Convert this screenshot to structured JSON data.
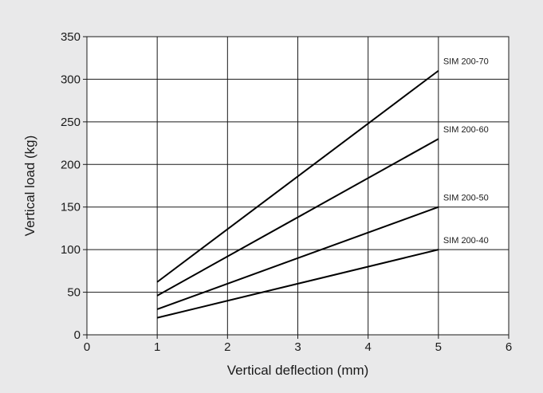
{
  "colors": {
    "background": "#e9e9ea",
    "plot_background": "#ffffff",
    "grid": "#1a1a1a",
    "series_line": "#000000",
    "text": "#1a1a1a"
  },
  "chart_data": {
    "type": "line",
    "title": "",
    "xlabel": "Vertical deflection (mm)",
    "ylabel": "Vertical load (kg)",
    "xlim": [
      0,
      6
    ],
    "ylim": [
      0,
      350
    ],
    "x_ticks": [
      "0",
      "1",
      "2",
      "3",
      "4",
      "5",
      "6"
    ],
    "y_ticks": [
      "0",
      "50",
      "100",
      "150",
      "200",
      "250",
      "300",
      "350"
    ],
    "grid": true,
    "legend": "none (series labelled at line ends)",
    "series": [
      {
        "name": "SIM 200-70",
        "x": [
          1,
          5
        ],
        "y": [
          62,
          310
        ]
      },
      {
        "name": "SIM 200-60",
        "x": [
          1,
          5
        ],
        "y": [
          46,
          230
        ]
      },
      {
        "name": "SIM 200-50",
        "x": [
          1,
          5
        ],
        "y": [
          30,
          150
        ]
      },
      {
        "name": "SIM 200-40",
        "x": [
          1,
          5
        ],
        "y": [
          20,
          100
        ]
      }
    ]
  }
}
